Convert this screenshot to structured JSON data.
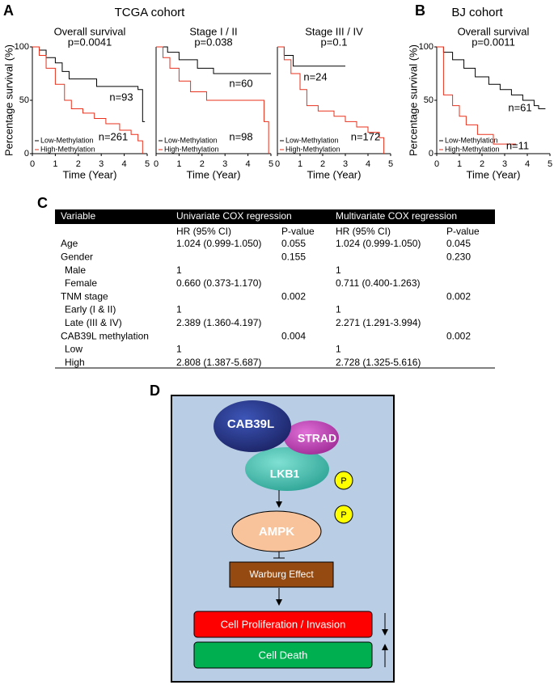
{
  "panel_labels": [
    "A",
    "B",
    "C",
    "D"
  ],
  "cohorts": [
    "TCGA cohort",
    "BJ cohort"
  ],
  "chart_data": [
    {
      "type": "line",
      "step": true,
      "title": "Overall survival",
      "subtitle": "p=0.0041",
      "x_label": "Time (Year)",
      "y_label": "Percentage survival (%)",
      "xlim": [
        0,
        5
      ],
      "xticks": [
        0,
        1,
        2,
        3,
        4,
        5
      ],
      "ylim": [
        0,
        100
      ],
      "yticks": [
        0,
        50,
        100
      ],
      "annotations": [
        "n=93",
        "n=261"
      ],
      "series": [
        {
          "name": "Low-Methylation",
          "color": "#000000",
          "x": [
            0,
            0.3,
            0.6,
            1.0,
            1.3,
            1.6,
            2.8,
            4.6,
            4.8,
            4.9
          ],
          "values": [
            100,
            97,
            90,
            85,
            77,
            70,
            63,
            60,
            30,
            30
          ]
        },
        {
          "name": "High-Methylation",
          "color": "#e8321e",
          "x": [
            0,
            0.3,
            0.6,
            1.0,
            1.4,
            1.7,
            2.2,
            2.7,
            3.2,
            3.8,
            4.3,
            4.6,
            4.8
          ],
          "values": [
            100,
            92,
            80,
            65,
            50,
            42,
            38,
            33,
            28,
            22,
            18,
            12,
            0
          ]
        }
      ]
    },
    {
      "type": "line",
      "step": true,
      "title": "Stage I / II",
      "subtitle": "p=0.038",
      "x_label": "Time (Year)",
      "xlim": [
        0,
        5
      ],
      "xticks": [
        0,
        1,
        2,
        3,
        4,
        5
      ],
      "ylim": [
        0,
        100
      ],
      "annotations": [
        "n=60",
        "n=98"
      ],
      "series": [
        {
          "name": "Low-Methylation",
          "color": "#000000",
          "x": [
            0,
            0.5,
            1.0,
            1.8,
            2.5,
            5.0
          ],
          "values": [
            100,
            95,
            88,
            80,
            75,
            75
          ]
        },
        {
          "name": "High-Methylation",
          "color": "#e8321e",
          "x": [
            0,
            0.3,
            0.6,
            1.0,
            1.5,
            2.2,
            4.6,
            4.7,
            4.9
          ],
          "values": [
            100,
            90,
            80,
            68,
            58,
            50,
            50,
            30,
            0
          ]
        }
      ]
    },
    {
      "type": "line",
      "step": true,
      "title": "Stage III / IV",
      "subtitle": "p=0.1",
      "x_label": "Time (Year)",
      "xlim": [
        0,
        5
      ],
      "xticks": [
        0,
        1,
        2,
        3,
        4,
        5
      ],
      "ylim": [
        0,
        100
      ],
      "annotations": [
        "n=24",
        "n=172"
      ],
      "series": [
        {
          "name": "Low-Methylation",
          "color": "#000000",
          "x": [
            0,
            0.3,
            0.7,
            3.0
          ],
          "values": [
            100,
            92,
            82,
            82
          ]
        },
        {
          "name": "High-Methylation",
          "color": "#e8321e",
          "x": [
            0,
            0.3,
            0.6,
            1.0,
            1.3,
            1.8,
            2.5,
            3.0,
            3.5,
            4.0,
            4.5,
            4.7
          ],
          "values": [
            100,
            88,
            75,
            60,
            45,
            40,
            35,
            30,
            25,
            20,
            15,
            0
          ]
        }
      ]
    },
    {
      "type": "line",
      "step": true,
      "title": "Overall survival",
      "subtitle": "p=0.0011",
      "x_label": "Time (Year)",
      "y_label": "Percentage survival (%)",
      "xlim": [
        0,
        5
      ],
      "xticks": [
        0,
        1,
        2,
        3,
        4,
        5
      ],
      "ylim": [
        0,
        100
      ],
      "yticks": [
        0,
        50,
        100
      ],
      "annotations": [
        "n=61",
        "n=11"
      ],
      "series": [
        {
          "name": "Low-Methylation",
          "color": "#000000",
          "x": [
            0,
            0.3,
            0.7,
            1.2,
            1.7,
            2.3,
            2.8,
            3.3,
            3.8,
            4.3,
            4.5,
            4.8
          ],
          "values": [
            100,
            95,
            88,
            80,
            72,
            65,
            60,
            55,
            50,
            45,
            42,
            42
          ]
        },
        {
          "name": "High-Methylation",
          "color": "#e8321e",
          "x": [
            0,
            0.3,
            0.7,
            1.0,
            1.3,
            1.8,
            2.5,
            3.5
          ],
          "values": [
            100,
            55,
            45,
            35,
            27,
            18,
            9,
            9
          ]
        }
      ]
    }
  ],
  "table": {
    "header": [
      "Variable",
      "Univariate  COX  regression",
      "Multivariate  COX  regression"
    ],
    "subheader": [
      null,
      "HR (95% CI)",
      "P-value",
      "HR (95% CI)",
      "P-value"
    ],
    "rows": [
      [
        "Age",
        "1.024 (0.999-1.050)",
        "0.055",
        "1.024 (0.999-1.050)",
        "0.045"
      ],
      [
        "Gender",
        null,
        "0.155",
        null,
        "0.230"
      ],
      [
        "Male",
        "1",
        null,
        "1",
        null
      ],
      [
        "Female",
        "0.660 (0.373-1.170)",
        null,
        "0.711 (0.400-1.263)",
        null
      ],
      [
        "TNM  stage",
        null,
        "0.002",
        null,
        "0.002"
      ],
      [
        "Early (I & II)",
        "1",
        null,
        "1",
        null
      ],
      [
        "Late (III & IV)",
        "2.389 (1.360-4.197)",
        null,
        "2.271 (1.291-3.994)",
        null
      ],
      [
        "CAB39L methylation",
        null,
        "0.004",
        null,
        "0.002"
      ],
      [
        "Low",
        "1",
        null,
        "1",
        null
      ],
      [
        "High",
        "2.808 (1.387-5.687)",
        null,
        "2.728 (1.325-5.616)",
        null
      ]
    ]
  },
  "diagram": {
    "proteins": [
      "CAB39L",
      "STRAD",
      "LKB1",
      "AMPK"
    ],
    "phospho": [
      "P",
      "P"
    ],
    "process": "Warburg  Effect",
    "outcomes": [
      "Cell Proliferation / Invasion",
      "Cell Death"
    ]
  }
}
